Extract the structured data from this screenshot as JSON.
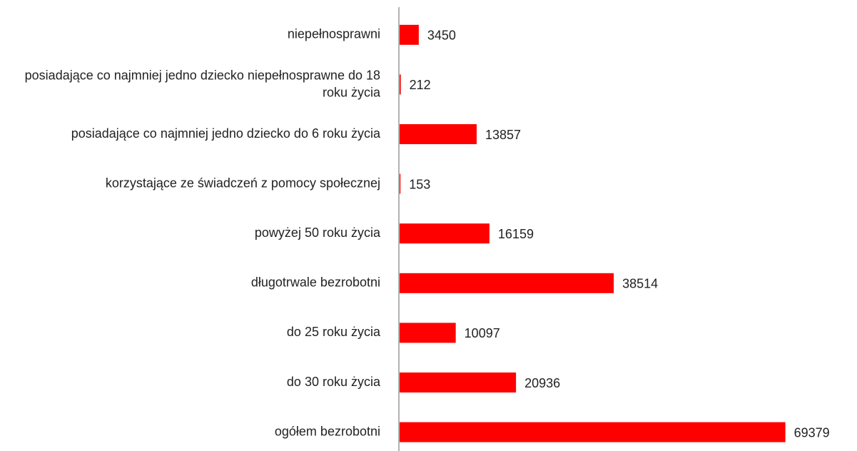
{
  "chart_data": {
    "type": "barh",
    "categories": [
      "niepełnosprawni",
      "posiadające co najmniej jedno dziecko niepełnosprawne do 18 roku życia",
      "posiadające co najmniej jedno dziecko do 6 roku życia",
      "korzystające ze świadczeń z pomocy społecznej",
      "powyżej 50 roku życia",
      "długotrwale bezrobotni",
      "do 25 roku życia",
      "do 30 roku życia",
      "ogółem bezrobotni"
    ],
    "values": [
      3450,
      212,
      13857,
      153,
      16159,
      38514,
      10097,
      20936,
      69379
    ],
    "color": "#ff0000",
    "xlim": [
      0,
      77000
    ]
  }
}
